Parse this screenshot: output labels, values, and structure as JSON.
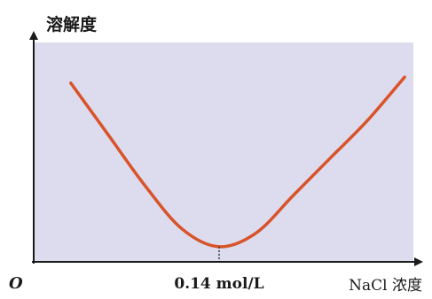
{
  "chart_data": {
    "type": "line",
    "ylabel": "溶解度",
    "xlabel": "NaCl 浓度",
    "origin_label": "O",
    "x_tick_label": "0.14 mol/L",
    "x_min_marker": 0.14,
    "grid": false,
    "series": [
      {
        "color": "#d9532a",
        "points": [
          [
            0.0,
            0.88
          ],
          [
            0.035,
            0.62
          ],
          [
            0.07,
            0.36
          ],
          [
            0.105,
            0.14
          ],
          [
            0.14,
            0.05
          ],
          [
            0.175,
            0.12
          ],
          [
            0.21,
            0.31
          ],
          [
            0.245,
            0.5
          ],
          [
            0.28,
            0.69
          ],
          [
            0.315,
            0.91
          ]
        ]
      }
    ],
    "xlim": [
      -0.035,
      0.32
    ],
    "ylim": [
      0,
      1.05
    ]
  },
  "colors": {
    "plot_background": "#dcdcee",
    "axis": "#1a1a1a",
    "curve": "#d9532a",
    "dashed_marker": "#333333"
  }
}
